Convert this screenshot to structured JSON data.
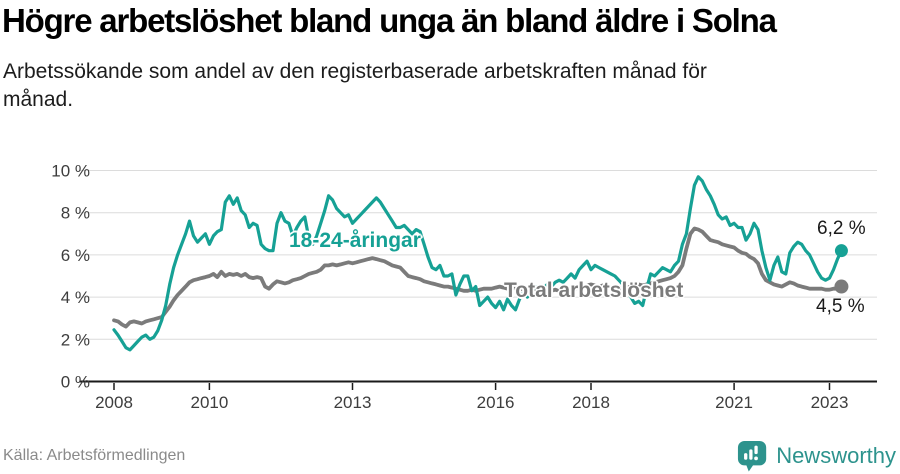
{
  "header": {
    "title": "Högre arbetslöshet bland unga än bland äldre i Solna",
    "subtitle_lines": [
      "Arbetssökande som andel av den registerbaserade arbetskraften månad för",
      "månad."
    ]
  },
  "footer": {
    "source": "Källa: Arbetsförmedlingen",
    "brand": "Newsworthy",
    "brand_color": "#2d938d",
    "source_color": "#8a8a8a"
  },
  "chart_data": {
    "type": "line",
    "title": "Högre arbetslöshet bland unga än bland äldre i Solna",
    "subtitle": "Arbetssökande som andel av den registerbaserade arbetskraften månad för månad.",
    "x_start": "2008-01",
    "x_end": "2023-04",
    "x_interval": "monthly",
    "ylim": [
      0,
      10
    ],
    "grid": true,
    "legend_position": "inline-labels",
    "axis_color": "#1a1a1a",
    "grid_color": "#dcdcdc",
    "tick_label_color": "#3d3d3d",
    "y_ticks": [
      {
        "value": 0,
        "label": "0 %"
      },
      {
        "value": 2,
        "label": "2 %"
      },
      {
        "value": 4,
        "label": "4 %"
      },
      {
        "value": 6,
        "label": "6 %"
      },
      {
        "value": 8,
        "label": "8 %"
      },
      {
        "value": 10,
        "label": "10 %"
      }
    ],
    "x_ticks": [
      {
        "year": 2008,
        "label": "2008"
      },
      {
        "year": 2010,
        "label": "2010"
      },
      {
        "year": 2013,
        "label": "2013"
      },
      {
        "year": 2016,
        "label": "2016"
      },
      {
        "year": 2018,
        "label": "2018"
      },
      {
        "year": 2021,
        "label": "2021"
      },
      {
        "year": 2023,
        "label": "2023"
      }
    ],
    "series": [
      {
        "name": "18-24-åringar",
        "color": "#16a195",
        "end_label": "6,2 %",
        "end_value": 6.2,
        "values": [
          2.45,
          2.2,
          1.9,
          1.6,
          1.5,
          1.7,
          1.9,
          2.1,
          2.2,
          2.0,
          2.1,
          2.4,
          2.9,
          3.6,
          4.6,
          5.4,
          6.0,
          6.5,
          7.0,
          7.6,
          6.9,
          6.6,
          6.8,
          7.0,
          6.5,
          6.9,
          7.1,
          7.2,
          8.5,
          8.8,
          8.4,
          8.7,
          8.1,
          7.9,
          7.3,
          7.5,
          7.4,
          6.5,
          6.3,
          6.2,
          6.2,
          7.5,
          8.0,
          7.6,
          7.5,
          6.9,
          7.3,
          7.6,
          7.8,
          6.8,
          6.5,
          6.9,
          7.5,
          8.1,
          8.8,
          8.6,
          8.2,
          8.0,
          7.8,
          7.9,
          7.5,
          7.7,
          7.9,
          8.1,
          8.3,
          8.5,
          8.7,
          8.5,
          8.2,
          7.9,
          7.6,
          7.3,
          7.3,
          7.4,
          7.2,
          7.0,
          7.2,
          7.1,
          6.5,
          5.9,
          5.4,
          5.3,
          5.5,
          5.0,
          5.0,
          5.1,
          4.1,
          4.6,
          5.0,
          5.0,
          4.3,
          4.5,
          3.6,
          3.8,
          4.0,
          3.7,
          3.5,
          3.8,
          3.4,
          3.9,
          3.6,
          3.4,
          3.9,
          4.2,
          4.0,
          4.3,
          4.5,
          4.4,
          4.4,
          4.6,
          4.5,
          4.7,
          4.8,
          4.7,
          4.9,
          5.1,
          4.9,
          5.3,
          5.5,
          5.7,
          5.3,
          5.5,
          5.4,
          5.3,
          5.2,
          5.1,
          5.0,
          4.8,
          4.6,
          4.3,
          4.0,
          3.7,
          3.8,
          3.6,
          4.4,
          5.1,
          5.0,
          5.2,
          5.4,
          5.3,
          5.2,
          5.5,
          5.7,
          6.5,
          7.0,
          8.2,
          9.3,
          9.7,
          9.5,
          9.1,
          8.8,
          8.4,
          7.9,
          7.7,
          7.8,
          7.4,
          7.5,
          7.3,
          7.3,
          6.7,
          7.0,
          7.5,
          7.2,
          6.2,
          5.4,
          4.8,
          5.5,
          5.9,
          5.2,
          5.1,
          6.1,
          6.4,
          6.6,
          6.5,
          6.2,
          6.0,
          5.6,
          5.2,
          4.9,
          4.8,
          4.9,
          5.3,
          5.8,
          6.2
        ]
      },
      {
        "name": "Total arbetslöshet",
        "color": "#7b7b7b",
        "end_label": "4,5 %",
        "end_value": 4.5,
        "values": [
          2.9,
          2.85,
          2.7,
          2.6,
          2.8,
          2.85,
          2.8,
          2.75,
          2.85,
          2.9,
          2.95,
          3.0,
          3.05,
          3.3,
          3.55,
          3.85,
          4.1,
          4.3,
          4.5,
          4.7,
          4.8,
          4.85,
          4.9,
          4.95,
          5.0,
          5.1,
          4.95,
          5.2,
          5.0,
          5.1,
          5.05,
          5.1,
          5.0,
          5.1,
          4.95,
          4.9,
          4.95,
          4.9,
          4.5,
          4.4,
          4.6,
          4.75,
          4.7,
          4.65,
          4.7,
          4.8,
          4.85,
          4.9,
          5.0,
          5.1,
          5.15,
          5.2,
          5.3,
          5.5,
          5.5,
          5.55,
          5.5,
          5.55,
          5.6,
          5.65,
          5.6,
          5.65,
          5.7,
          5.75,
          5.8,
          5.85,
          5.8,
          5.75,
          5.7,
          5.6,
          5.5,
          5.45,
          5.4,
          5.2,
          5.0,
          4.95,
          4.9,
          4.85,
          4.75,
          4.7,
          4.65,
          4.6,
          4.55,
          4.5,
          4.5,
          4.45,
          4.4,
          4.35,
          4.3,
          4.3,
          4.35,
          4.3,
          4.35,
          4.4,
          4.4,
          4.4,
          4.45,
          4.5,
          4.45,
          4.4,
          4.45,
          4.4,
          4.35,
          4.4,
          4.35,
          4.3,
          4.35,
          4.3,
          4.3,
          4.25,
          4.3,
          4.35,
          4.3,
          4.35,
          4.4,
          4.35,
          4.4,
          4.45,
          4.5,
          4.55,
          4.6,
          4.55,
          4.5,
          4.55,
          4.5,
          4.45,
          4.5,
          4.45,
          4.4,
          4.45,
          4.5,
          4.55,
          4.6,
          4.55,
          4.6,
          4.65,
          4.7,
          4.75,
          4.8,
          4.85,
          4.9,
          5.0,
          5.2,
          5.5,
          6.3,
          7.0,
          7.25,
          7.2,
          7.1,
          6.9,
          6.7,
          6.65,
          6.6,
          6.5,
          6.45,
          6.4,
          6.35,
          6.2,
          6.1,
          6.05,
          5.9,
          5.8,
          5.6,
          5.1,
          4.8,
          4.7,
          4.6,
          4.55,
          4.5,
          4.6,
          4.7,
          4.65,
          4.55,
          4.5,
          4.45,
          4.4,
          4.4,
          4.4,
          4.4,
          4.35,
          4.35,
          4.4,
          4.4,
          4.5
        ]
      }
    ]
  }
}
